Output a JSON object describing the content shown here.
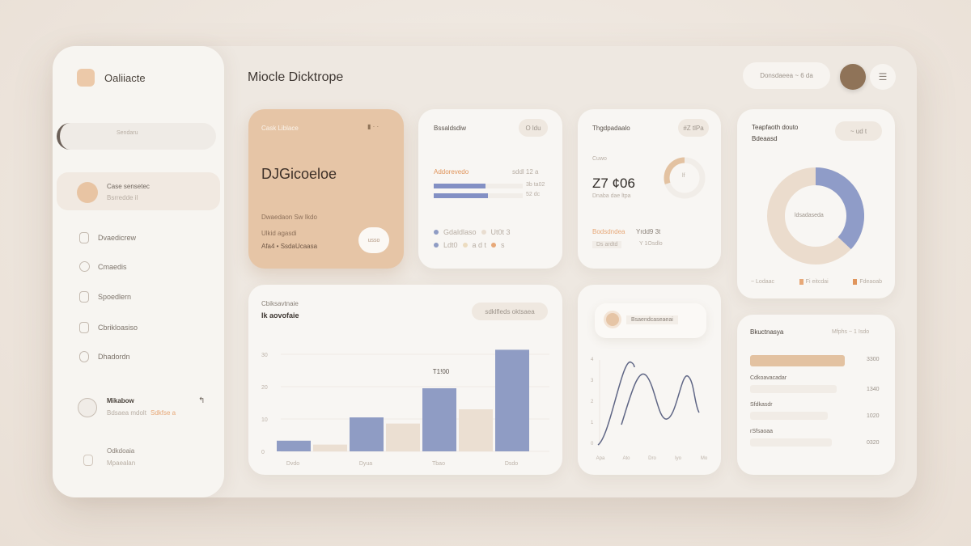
{
  "colors": {
    "accent": "#e6c5a6",
    "blue": "#8f9cc4",
    "beige": "#e9ddd0",
    "orange": "#e0955c",
    "avatar": "#8f7358"
  },
  "sidebar": {
    "brand": "Oaliiacte",
    "search_placeholder": "Sendaru",
    "active": {
      "title": "Case sensetec",
      "subtitle": "Bsrredde il"
    },
    "items": [
      {
        "label": "Dvaedicrew",
        "icon": "shield-icon"
      },
      {
        "label": "Cmaedis",
        "icon": "clock-icon"
      },
      {
        "label": "Spoedlern",
        "icon": "document-icon"
      },
      {
        "label": "Cbrikloasiso",
        "icon": "calendar-icon"
      },
      {
        "label": "Dhadordn",
        "icon": "folder-icon"
      }
    ],
    "profile": {
      "name": "Mikabow",
      "detail": "Bdsaea mdolt",
      "tag": "Sdkfse a"
    },
    "footer": {
      "title": "Odkdoaia",
      "subtitle": "Mpaealan"
    }
  },
  "header": {
    "title": "Miocle Dicktrope",
    "pill": "Donsdaeea ~ 6 da"
  },
  "feature_card": {
    "label": "Cask Liblace",
    "value": "DJGicoeloe",
    "line1": "Dwaedaon Sw Ikdo",
    "line2": "Ulkid agasdi",
    "line3": "Afa4 • SsdaUcaasa",
    "button": "usso"
  },
  "progress_card": {
    "title": "Bssaldsdiw",
    "pill": "O ldu",
    "highlight": "Addorevedo",
    "highlight_value": "sddl 12 a",
    "bars": [
      {
        "value": 0.58,
        "label": "3b ta02"
      },
      {
        "value": 0.61,
        "label": "52 dc"
      }
    ],
    "legend": [
      "Gdaldlaso",
      "Ut0t 3",
      "Ldt0",
      "a d t",
      "s"
    ]
  },
  "stat_card": {
    "title": "Thgdpadaalo",
    "pill": "#Z tlPa",
    "caption": "Cuwo",
    "value": "Z7 ¢06",
    "sub": "Dnaba dae ltpa",
    "gauge": 0.3,
    "gauge_label": "lf",
    "orange_label": "Bodsdndea",
    "orange_value": "Yrdd9 3t",
    "foot1": "Ds ardtd",
    "foot2": "Y 1Osdlo"
  },
  "donut_card": {
    "title1": "Teapfaoth douto",
    "title2": "Bdeaasd",
    "pill": "~ ud t",
    "center": "ldsadaseda",
    "blue_fraction": 0.37,
    "legend": [
      "~ Lodaac",
      "Fi eitcdai",
      "Fdeaoab"
    ]
  },
  "chart_data": {
    "type": "bar",
    "title": "Cbiksavtnaie",
    "subtitle": "Ik aovofaie",
    "pill": "sdklfleds oktsaea",
    "categories": [
      "Dvdo",
      "Dyua",
      "Tbao",
      "Dsdo"
    ],
    "series": [
      {
        "values": [
          3.3,
          10.5,
          19.5,
          31.4
        ]
      },
      {
        "values": [
          2.1,
          8.6,
          13.0,
          null
        ]
      }
    ],
    "ylim": [
      0,
      32
    ],
    "yticks": [
      "0",
      "10",
      "20",
      "30"
    ],
    "annotation": "T1!00",
    "grid": true
  },
  "line_card": {
    "pill": "Bsaendcaseaeai",
    "yticks": [
      "0",
      "1",
      "2",
      "3",
      "4"
    ],
    "xticks": [
      "Apa",
      "Ato",
      "Dro",
      "Iyo",
      "Mo"
    ]
  },
  "list_card": {
    "title": "Bkuctnasya",
    "right": "Mfphs ~ 1 Isdo",
    "rows": [
      {
        "label": "",
        "value": "3300",
        "fill": 0.9,
        "strong": true
      },
      {
        "label": "Cdkoavacadar",
        "value": "1340",
        "fill": 0.82
      },
      {
        "label": "Sfdkasdr",
        "value": "1020",
        "fill": 0.74
      },
      {
        "label": "rSfsaoaa",
        "value": "0320",
        "fill": 0.78
      }
    ]
  }
}
